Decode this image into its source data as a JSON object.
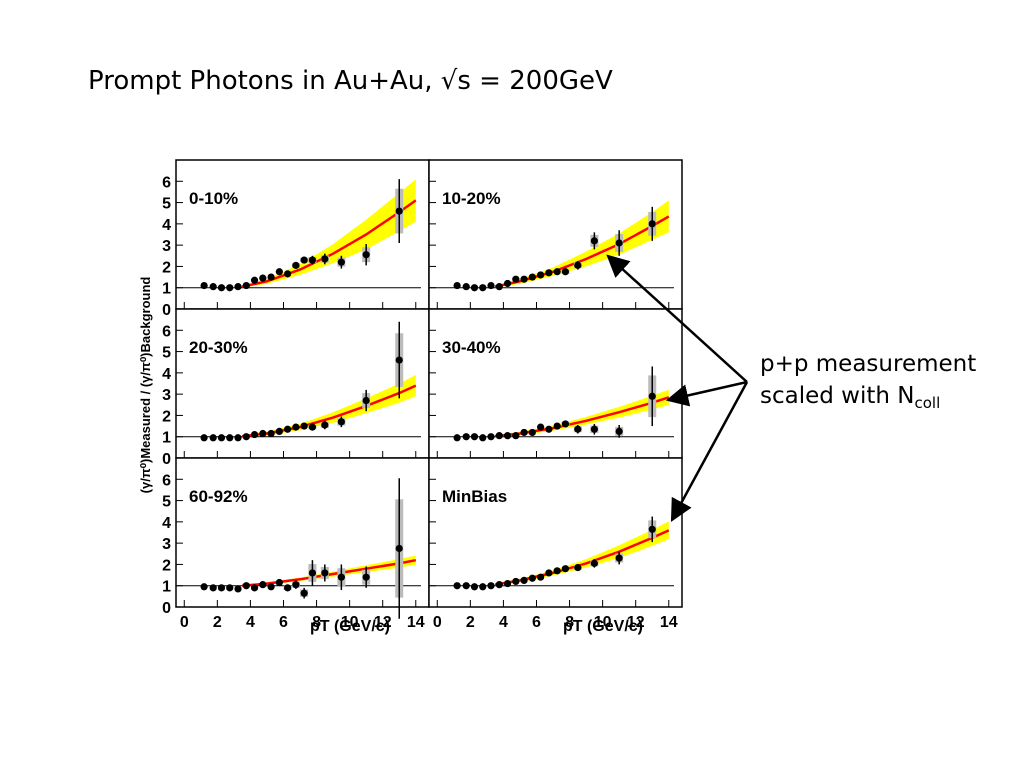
{
  "slide": {
    "title": "Prompt Photons in Au+Au, √s = 200GeV",
    "annotation_line1": "p+p measurement",
    "annotation_line2_prefix": "scaled with N",
    "annotation_line2_sub": "coll"
  },
  "chart_data": {
    "type": "scatter",
    "ylabel": "(γ/π⁰)Measured / (γ/π⁰)Background",
    "xlabel": "pT (GeV/c)",
    "xlim": [
      -0.5,
      14.8
    ],
    "ylim": [
      0,
      7
    ],
    "xticks": [
      0,
      2,
      4,
      6,
      8,
      10,
      12,
      14
    ],
    "yticks": [
      0,
      1,
      2,
      3,
      4,
      5,
      6
    ],
    "reference_line": 1,
    "colors": {
      "band": "#ffff00",
      "curve": "#ff0000",
      "points": "#000000",
      "syst": "#bbbbbb"
    },
    "panels": [
      {
        "label": "0-10%",
        "curve_x": [
          3.5,
          5,
          7,
          9,
          11,
          13,
          14
        ],
        "curve_y": [
          1.05,
          1.3,
          1.85,
          2.6,
          3.5,
          4.55,
          5.1
        ],
        "band_half": [
          0.05,
          0.12,
          0.25,
          0.45,
          0.7,
          0.9,
          1.0
        ],
        "points": [
          {
            "x": 1.2,
            "y": 1.1,
            "e": 0.08
          },
          {
            "x": 1.75,
            "y": 1.05,
            "e": 0.08
          },
          {
            "x": 2.25,
            "y": 1.0,
            "e": 0.08
          },
          {
            "x": 2.75,
            "y": 1.0,
            "e": 0.08
          },
          {
            "x": 3.25,
            "y": 1.05,
            "e": 0.08
          },
          {
            "x": 3.75,
            "y": 1.1,
            "e": 0.08
          },
          {
            "x": 4.25,
            "y": 1.35,
            "e": 0.1
          },
          {
            "x": 4.75,
            "y": 1.45,
            "e": 0.1
          },
          {
            "x": 5.25,
            "y": 1.5,
            "e": 0.1
          },
          {
            "x": 5.75,
            "y": 1.75,
            "e": 0.12
          },
          {
            "x": 6.25,
            "y": 1.65,
            "e": 0.12
          },
          {
            "x": 6.75,
            "y": 2.05,
            "e": 0.15
          },
          {
            "x": 7.25,
            "y": 2.3,
            "e": 0.15
          },
          {
            "x": 7.75,
            "y": 2.3,
            "e": 0.2
          },
          {
            "x": 8.5,
            "y": 2.35,
            "e": 0.25
          },
          {
            "x": 9.5,
            "y": 2.2,
            "e": 0.3
          },
          {
            "x": 11,
            "y": 2.55,
            "e": 0.5
          },
          {
            "x": 13,
            "y": 4.6,
            "e": 1.5
          }
        ]
      },
      {
        "label": "10-20%",
        "curve_x": [
          3.5,
          5,
          7,
          9,
          11,
          13,
          14
        ],
        "curve_y": [
          1.05,
          1.3,
          1.75,
          2.35,
          3.05,
          3.9,
          4.35
        ],
        "band_half": [
          0.05,
          0.12,
          0.2,
          0.35,
          0.5,
          0.65,
          0.75
        ],
        "points": [
          {
            "x": 1.2,
            "y": 1.1,
            "e": 0.08
          },
          {
            "x": 1.75,
            "y": 1.05,
            "e": 0.08
          },
          {
            "x": 2.25,
            "y": 1.0,
            "e": 0.08
          },
          {
            "x": 2.75,
            "y": 1.0,
            "e": 0.08
          },
          {
            "x": 3.25,
            "y": 1.1,
            "e": 0.08
          },
          {
            "x": 3.75,
            "y": 1.05,
            "e": 0.08
          },
          {
            "x": 4.25,
            "y": 1.2,
            "e": 0.08
          },
          {
            "x": 4.75,
            "y": 1.4,
            "e": 0.1
          },
          {
            "x": 5.25,
            "y": 1.4,
            "e": 0.1
          },
          {
            "x": 5.75,
            "y": 1.5,
            "e": 0.1
          },
          {
            "x": 6.25,
            "y": 1.6,
            "e": 0.12
          },
          {
            "x": 6.75,
            "y": 1.7,
            "e": 0.12
          },
          {
            "x": 7.25,
            "y": 1.75,
            "e": 0.12
          },
          {
            "x": 7.75,
            "y": 1.75,
            "e": 0.15
          },
          {
            "x": 8.5,
            "y": 2.05,
            "e": 0.2
          },
          {
            "x": 9.5,
            "y": 3.2,
            "e": 0.4
          },
          {
            "x": 11,
            "y": 3.1,
            "e": 0.6
          },
          {
            "x": 13,
            "y": 4.0,
            "e": 0.8
          }
        ]
      },
      {
        "label": "20-30%",
        "curve_x": [
          3.5,
          5,
          7,
          9,
          11,
          13,
          14
        ],
        "curve_y": [
          1.02,
          1.15,
          1.45,
          1.9,
          2.45,
          3.05,
          3.4
        ],
        "band_half": [
          0.05,
          0.1,
          0.15,
          0.25,
          0.35,
          0.45,
          0.5
        ],
        "points": [
          {
            "x": 1.2,
            "y": 0.95,
            "e": 0.05
          },
          {
            "x": 1.75,
            "y": 0.95,
            "e": 0.05
          },
          {
            "x": 2.25,
            "y": 0.95,
            "e": 0.05
          },
          {
            "x": 2.75,
            "y": 0.95,
            "e": 0.05
          },
          {
            "x": 3.25,
            "y": 0.95,
            "e": 0.05
          },
          {
            "x": 3.75,
            "y": 1.0,
            "e": 0.05
          },
          {
            "x": 4.25,
            "y": 1.1,
            "e": 0.05
          },
          {
            "x": 4.75,
            "y": 1.15,
            "e": 0.05
          },
          {
            "x": 5.25,
            "y": 1.15,
            "e": 0.08
          },
          {
            "x": 5.75,
            "y": 1.25,
            "e": 0.08
          },
          {
            "x": 6.25,
            "y": 1.35,
            "e": 0.1
          },
          {
            "x": 6.75,
            "y": 1.45,
            "e": 0.1
          },
          {
            "x": 7.25,
            "y": 1.5,
            "e": 0.12
          },
          {
            "x": 7.75,
            "y": 1.45,
            "e": 0.15
          },
          {
            "x": 8.5,
            "y": 1.55,
            "e": 0.2
          },
          {
            "x": 9.5,
            "y": 1.7,
            "e": 0.25
          },
          {
            "x": 11,
            "y": 2.7,
            "e": 0.5
          },
          {
            "x": 13,
            "y": 4.6,
            "e": 1.8
          }
        ]
      },
      {
        "label": "30-40%",
        "curve_x": [
          3.5,
          5,
          7,
          9,
          11,
          13,
          14
        ],
        "curve_y": [
          1.02,
          1.15,
          1.4,
          1.75,
          2.15,
          2.6,
          2.85
        ],
        "band_half": [
          0.05,
          0.08,
          0.12,
          0.18,
          0.25,
          0.32,
          0.36
        ],
        "points": [
          {
            "x": 1.2,
            "y": 0.95,
            "e": 0.05
          },
          {
            "x": 1.75,
            "y": 1.0,
            "e": 0.05
          },
          {
            "x": 2.25,
            "y": 1.0,
            "e": 0.05
          },
          {
            "x": 2.75,
            "y": 0.95,
            "e": 0.05
          },
          {
            "x": 3.25,
            "y": 1.0,
            "e": 0.05
          },
          {
            "x": 3.75,
            "y": 1.05,
            "e": 0.05
          },
          {
            "x": 4.25,
            "y": 1.05,
            "e": 0.05
          },
          {
            "x": 4.75,
            "y": 1.05,
            "e": 0.05
          },
          {
            "x": 5.25,
            "y": 1.2,
            "e": 0.08
          },
          {
            "x": 5.75,
            "y": 1.2,
            "e": 0.08
          },
          {
            "x": 6.25,
            "y": 1.45,
            "e": 0.1
          },
          {
            "x": 6.75,
            "y": 1.35,
            "e": 0.1
          },
          {
            "x": 7.25,
            "y": 1.5,
            "e": 0.12
          },
          {
            "x": 7.75,
            "y": 1.6,
            "e": 0.15
          },
          {
            "x": 8.5,
            "y": 1.35,
            "e": 0.2
          },
          {
            "x": 9.5,
            "y": 1.35,
            "e": 0.25
          },
          {
            "x": 11,
            "y": 1.25,
            "e": 0.3
          },
          {
            "x": 13,
            "y": 2.9,
            "e": 1.4
          }
        ]
      },
      {
        "label": "60-92%",
        "curve_x": [
          3.5,
          5,
          7,
          9,
          11,
          13,
          14
        ],
        "curve_y": [
          1.0,
          1.1,
          1.3,
          1.55,
          1.8,
          2.05,
          2.2
        ],
        "band_half": [
          0.04,
          0.06,
          0.08,
          0.12,
          0.16,
          0.2,
          0.22
        ],
        "points": [
          {
            "x": 1.2,
            "y": 0.95,
            "e": 0.05
          },
          {
            "x": 1.75,
            "y": 0.9,
            "e": 0.05
          },
          {
            "x": 2.25,
            "y": 0.9,
            "e": 0.05
          },
          {
            "x": 2.75,
            "y": 0.9,
            "e": 0.05
          },
          {
            "x": 3.25,
            "y": 0.85,
            "e": 0.05
          },
          {
            "x": 3.75,
            "y": 1.0,
            "e": 0.05
          },
          {
            "x": 4.25,
            "y": 0.9,
            "e": 0.08
          },
          {
            "x": 4.75,
            "y": 1.05,
            "e": 0.08
          },
          {
            "x": 5.25,
            "y": 0.95,
            "e": 0.1
          },
          {
            "x": 5.75,
            "y": 1.15,
            "e": 0.12
          },
          {
            "x": 6.25,
            "y": 0.9,
            "e": 0.15
          },
          {
            "x": 6.75,
            "y": 1.05,
            "e": 0.2
          },
          {
            "x": 7.25,
            "y": 0.65,
            "e": 0.25
          },
          {
            "x": 7.75,
            "y": 1.6,
            "e": 0.6
          },
          {
            "x": 8.5,
            "y": 1.6,
            "e": 0.4
          },
          {
            "x": 9.5,
            "y": 1.4,
            "e": 0.6
          },
          {
            "x": 11,
            "y": 1.4,
            "e": 0.5
          },
          {
            "x": 13,
            "y": 2.75,
            "e": 3.3
          }
        ]
      },
      {
        "label": "MinBias",
        "curve_x": [
          3.5,
          5,
          7,
          9,
          11,
          13,
          14
        ],
        "curve_y": [
          1.05,
          1.25,
          1.6,
          2.05,
          2.6,
          3.25,
          3.6
        ],
        "band_half": [
          0.05,
          0.08,
          0.12,
          0.2,
          0.3,
          0.38,
          0.42
        ],
        "points": [
          {
            "x": 1.2,
            "y": 1.0,
            "e": 0.05
          },
          {
            "x": 1.75,
            "y": 1.0,
            "e": 0.05
          },
          {
            "x": 2.25,
            "y": 0.95,
            "e": 0.05
          },
          {
            "x": 2.75,
            "y": 0.95,
            "e": 0.05
          },
          {
            "x": 3.25,
            "y": 1.0,
            "e": 0.05
          },
          {
            "x": 3.75,
            "y": 1.05,
            "e": 0.05
          },
          {
            "x": 4.25,
            "y": 1.1,
            "e": 0.05
          },
          {
            "x": 4.75,
            "y": 1.2,
            "e": 0.05
          },
          {
            "x": 5.25,
            "y": 1.25,
            "e": 0.08
          },
          {
            "x": 5.75,
            "y": 1.35,
            "e": 0.08
          },
          {
            "x": 6.25,
            "y": 1.4,
            "e": 0.08
          },
          {
            "x": 6.75,
            "y": 1.6,
            "e": 0.1
          },
          {
            "x": 7.25,
            "y": 1.7,
            "e": 0.1
          },
          {
            "x": 7.75,
            "y": 1.8,
            "e": 0.12
          },
          {
            "x": 8.5,
            "y": 1.85,
            "e": 0.15
          },
          {
            "x": 9.5,
            "y": 2.05,
            "e": 0.2
          },
          {
            "x": 11,
            "y": 2.3,
            "e": 0.3
          },
          {
            "x": 13,
            "y": 3.65,
            "e": 0.6
          }
        ]
      }
    ]
  }
}
